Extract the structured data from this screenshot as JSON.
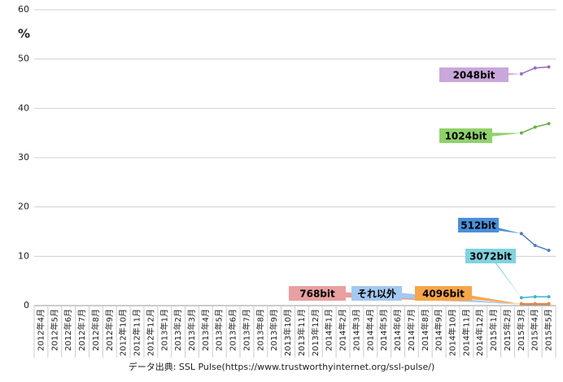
{
  "chart_data": {
    "type": "line",
    "y_label": "%",
    "source": "データ出典: SSL Pulse(https://www.trustworthyinternet.org/ssl-pulse/)",
    "categories": [
      "2012年4月",
      "2012年5月",
      "2012年6月",
      "2012年7月",
      "2012年8月",
      "2012年9月",
      "2012年10月",
      "2012年11月",
      "2012年12月",
      "2013年1月",
      "2013年2月",
      "2013年3月",
      "2013年4月",
      "2013年5月",
      "2013年6月",
      "2013年7月",
      "2013年8月",
      "2013年9月",
      "2013年10月",
      "2013年11月",
      "2013年12月",
      "2014年1月",
      "2014年2月",
      "2014年3月",
      "2014年4月",
      "2014年5月",
      "2014年6月",
      "2014年7月",
      "2014年8月",
      "2014年9月",
      "2014年10月",
      "2014年11月",
      "2014年12月",
      "2015年1月",
      "2015年2月",
      "2015年3月",
      "2015年4月",
      "2015年5月"
    ],
    "series": [
      {
        "name": "2048bit",
        "color": "#9b6bbd",
        "label_color": "#caa7db",
        "values": [
          null,
          null,
          null,
          null,
          null,
          null,
          null,
          null,
          null,
          null,
          null,
          null,
          null,
          null,
          null,
          null,
          null,
          null,
          null,
          null,
          null,
          null,
          null,
          null,
          null,
          null,
          null,
          null,
          null,
          null,
          null,
          null,
          null,
          null,
          null,
          47.0,
          48.2,
          48.4
        ]
      },
      {
        "name": "1024bit",
        "color": "#6ab04c",
        "label_color": "#8fd16b",
        "values": [
          null,
          null,
          null,
          null,
          null,
          null,
          null,
          null,
          null,
          null,
          null,
          null,
          null,
          null,
          null,
          null,
          null,
          null,
          null,
          null,
          null,
          null,
          null,
          null,
          null,
          null,
          null,
          null,
          null,
          null,
          null,
          null,
          null,
          null,
          null,
          35.0,
          36.2,
          36.9
        ]
      },
      {
        "name": "512bit",
        "color": "#4d7fc2",
        "label_color": "#4a8fd9",
        "values": [
          null,
          null,
          null,
          null,
          null,
          null,
          null,
          null,
          null,
          null,
          null,
          null,
          null,
          null,
          null,
          null,
          null,
          null,
          null,
          null,
          null,
          null,
          null,
          null,
          null,
          null,
          null,
          null,
          null,
          null,
          null,
          null,
          null,
          null,
          null,
          14.6,
          12.2,
          11.2
        ]
      },
      {
        "name": "3072bit",
        "color": "#3bb6c9",
        "label_color": "#7fd3e0",
        "values": [
          null,
          null,
          null,
          null,
          null,
          null,
          null,
          null,
          null,
          null,
          null,
          null,
          null,
          null,
          null,
          null,
          null,
          null,
          null,
          null,
          null,
          null,
          null,
          null,
          null,
          null,
          null,
          null,
          null,
          null,
          null,
          null,
          null,
          null,
          null,
          1.6,
          1.8,
          1.8
        ]
      },
      {
        "name": "768bit",
        "color": "#d9706f",
        "label_color": "#e8a0a0",
        "values": [
          null,
          null,
          null,
          null,
          null,
          null,
          null,
          null,
          null,
          null,
          null,
          null,
          null,
          null,
          null,
          null,
          null,
          null,
          null,
          null,
          null,
          null,
          null,
          null,
          null,
          null,
          null,
          null,
          null,
          null,
          null,
          null,
          null,
          null,
          null,
          0.4,
          0.4,
          0.4
        ]
      },
      {
        "name": "それ以外",
        "color": "#7fa3d6",
        "label_color": "#a4c8ef",
        "values": [
          null,
          null,
          null,
          null,
          null,
          null,
          null,
          null,
          null,
          null,
          null,
          null,
          null,
          null,
          null,
          null,
          null,
          null,
          null,
          null,
          null,
          null,
          null,
          null,
          null,
          null,
          null,
          null,
          null,
          null,
          null,
          null,
          null,
          null,
          null,
          0.2,
          0.2,
          0.2
        ]
      },
      {
        "name": "4096bit",
        "color": "#f08c2a",
        "label_color": "#f7a54a",
        "values": [
          null,
          null,
          null,
          null,
          null,
          null,
          null,
          null,
          null,
          null,
          null,
          null,
          null,
          null,
          null,
          null,
          null,
          null,
          null,
          null,
          null,
          null,
          null,
          null,
          null,
          null,
          null,
          null,
          null,
          null,
          null,
          null,
          null,
          null,
          null,
          0.3,
          0.3,
          0.3
        ]
      }
    ],
    "ylim": [
      0,
      60
    ],
    "yticks": [
      0,
      10,
      20,
      30,
      40,
      50,
      60
    ],
    "grid": true
  }
}
